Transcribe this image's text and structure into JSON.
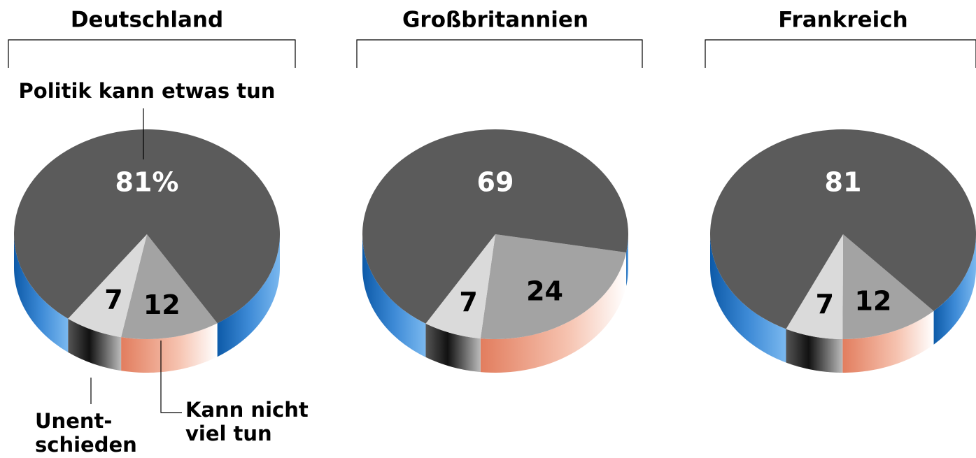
{
  "chart_data": [
    {
      "type": "pie",
      "title": "Deutschland",
      "categories": [
        "Politik kann etwas tun",
        "Kann nicht\nviel tun",
        "Unent-\nschieden"
      ],
      "values": [
        81,
        12,
        7
      ],
      "value_labels": [
        "81%",
        "12",
        "7"
      ],
      "colors": [
        "#5b5b5b",
        "#a3a3a3",
        "#dadada"
      ]
    },
    {
      "type": "pie",
      "title": "Großbritannien",
      "values": [
        69,
        24,
        7
      ],
      "colors": [
        "#5b5b5b",
        "#a3a3a3",
        "#dadada"
      ]
    },
    {
      "type": "pie",
      "title": "Frankreich",
      "values": [
        81,
        12,
        7
      ],
      "colors": [
        "#5b5b5b",
        "#a3a3a3",
        "#dadada"
      ]
    }
  ]
}
